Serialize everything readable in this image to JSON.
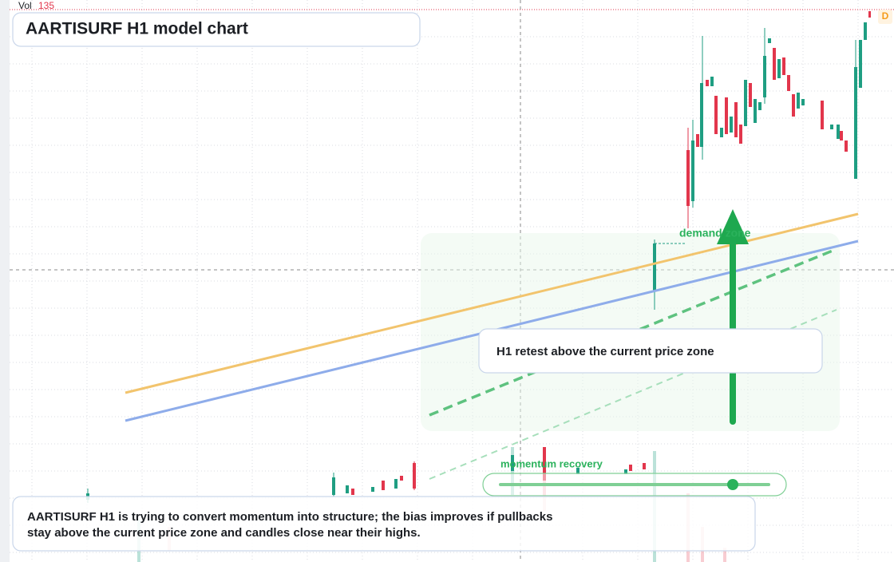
{
  "toolbar": {
    "volume_label": "Vol",
    "volume_value": "135",
    "interval_badge": "D"
  },
  "header": {
    "title": "AARTISURF H1 model chart"
  },
  "annotations": {
    "zone_label": "demand zone",
    "callout": "H1 retest above the current price zone",
    "momentum_label": "momentum recovery"
  },
  "note": {
    "lines": [
      "AARTISURF H1 is trying to convert momentum into structure; the bias improves if pullbacks",
      "stay above the current price zone and candles close near their highs."
    ]
  }
}
